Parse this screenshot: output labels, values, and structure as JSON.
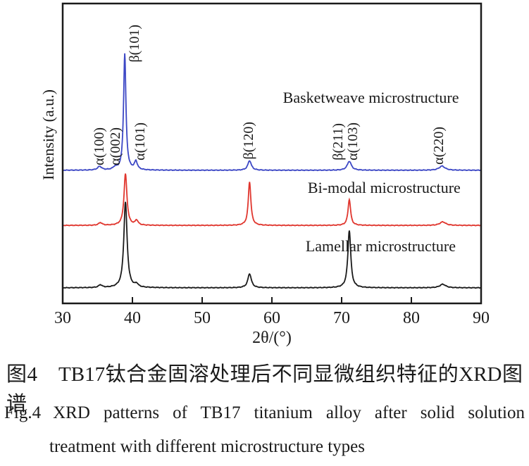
{
  "figure": {
    "caption_cn": "图4　TB17钛合金固溶处理后不同显微组织特征的XRD图谱",
    "caption_en_label": "Fig.4",
    "caption_en_text": "XRD patterns of TB17 titanium alloy after solid solution",
    "caption_en_line2": "treatment with different microstructure types"
  },
  "chart_data": {
    "type": "line",
    "title": "",
    "xlabel": "2θ/(°)",
    "ylabel": "Intensity (a.u.)",
    "xlim": [
      30,
      90
    ],
    "x_ticks": [
      30,
      40,
      50,
      60,
      70,
      80,
      90
    ],
    "y_axis": "arbitrary units, no ticks",
    "grid": false,
    "legend": "inline text labels beside each curve",
    "series": [
      {
        "name": "Lamellar microstructure",
        "color": "#1a1a1a",
        "baseline_au": 5.2,
        "peaks": [
          {
            "two_theta": 35.4,
            "height_au": 0.9,
            "hwhm_deg": 0.3
          },
          {
            "two_theta": 39.0,
            "height_au": 28.6,
            "hwhm_deg": 0.28
          },
          {
            "two_theta": 40.6,
            "height_au": 1.0,
            "hwhm_deg": 0.25
          },
          {
            "two_theta": 56.8,
            "height_au": 4.7,
            "hwhm_deg": 0.3
          },
          {
            "two_theta": 71.1,
            "height_au": 19.2,
            "hwhm_deg": 0.25
          },
          {
            "two_theta": 84.5,
            "height_au": 1.2,
            "hwhm_deg": 0.5
          }
        ]
      },
      {
        "name": "Bi-modal microstructure",
        "color": "#e0362e",
        "baseline_au": 26.0,
        "peaks": [
          {
            "two_theta": 35.4,
            "height_au": 0.9,
            "hwhm_deg": 0.3
          },
          {
            "two_theta": 39.0,
            "height_au": 17.2,
            "hwhm_deg": 0.25
          },
          {
            "two_theta": 40.6,
            "height_au": 1.6,
            "hwhm_deg": 0.25
          },
          {
            "two_theta": 56.8,
            "height_au": 14.6,
            "hwhm_deg": 0.22
          },
          {
            "two_theta": 71.1,
            "height_au": 8.7,
            "hwhm_deg": 0.22
          },
          {
            "two_theta": 84.5,
            "height_au": 1.2,
            "hwhm_deg": 0.5
          }
        ]
      },
      {
        "name": "Basketweave microstructure",
        "color": "#3c47c5",
        "baseline_au": 44.4,
        "peaks": [
          {
            "two_theta": 35.3,
            "height_au": 1.2,
            "hwhm_deg": 0.35
          },
          {
            "two_theta": 37.5,
            "height_au": 0.8,
            "hwhm_deg": 0.3
          },
          {
            "two_theta": 38.9,
            "height_au": 38.8,
            "hwhm_deg": 0.2
          },
          {
            "two_theta": 40.5,
            "height_au": 2.8,
            "hwhm_deg": 0.25
          },
          {
            "two_theta": 56.8,
            "height_au": 3.2,
            "hwhm_deg": 0.3
          },
          {
            "two_theta": 71.1,
            "height_au": 3.0,
            "hwhm_deg": 0.35
          },
          {
            "two_theta": 84.4,
            "height_au": 1.4,
            "hwhm_deg": 0.5
          }
        ]
      }
    ],
    "peak_labels": [
      {
        "text": "α(100)",
        "two_theta": 35.3,
        "bottom_au": 46.0
      },
      {
        "text": "α(002)",
        "two_theta": 37.6,
        "bottom_au": 46.0
      },
      {
        "text": "β(101)",
        "two_theta": 40.4,
        "bottom_au": 80.5
      },
      {
        "text": "α(101)",
        "two_theta": 41.2,
        "bottom_au": 47.7
      },
      {
        "text": "β(120)",
        "two_theta": 56.7,
        "bottom_au": 48.1
      },
      {
        "text": "β(211)",
        "two_theta": 69.5,
        "bottom_au": 47.7
      },
      {
        "text": "α(103)",
        "two_theta": 71.7,
        "bottom_au": 47.7
      },
      {
        "text": "α(220)",
        "two_theta": 84.0,
        "bottom_au": 46.2
      }
    ],
    "series_labels": [
      {
        "text": "Basketweave microstructure",
        "two_theta": 74.2,
        "center_au": 68.5
      },
      {
        "text": "Bi-modal microstructure",
        "two_theta": 76.1,
        "center_au": 38.5
      },
      {
        "text": "Lamellar microstructure",
        "two_theta": 75.6,
        "center_au": 19.0
      }
    ]
  }
}
